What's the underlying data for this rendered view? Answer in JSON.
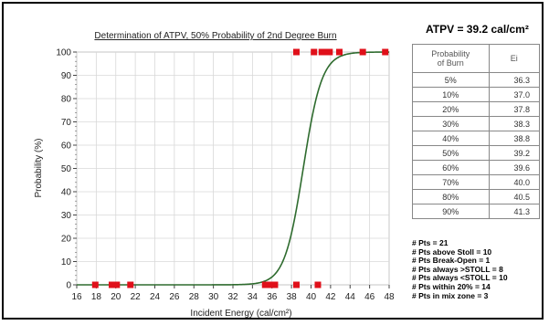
{
  "chart_data": {
    "type": "scatter",
    "title": "Determination of ATPV, 50% Probability of 2nd Degree Burn",
    "xlabel": "Incident Energy (cal/cm²)",
    "ylabel": "Probability (%)",
    "xlim": [
      16,
      48
    ],
    "ylim": [
      0,
      100
    ],
    "x_ticks": [
      "16",
      "18",
      "20",
      "22",
      "24",
      "26",
      "28",
      "30",
      "32",
      "34",
      "36",
      "38",
      "40",
      "42",
      "44",
      "46",
      "48"
    ],
    "y_ticks": [
      "0",
      "10",
      "20",
      "30",
      "40",
      "50",
      "60",
      "70",
      "80",
      "90",
      "100"
    ],
    "grid": true,
    "series": [
      {
        "type": "scatter",
        "color": "#e0101a",
        "points": [
          {
            "x": 17.9,
            "y": 0
          },
          {
            "x": 19.6,
            "y": 0
          },
          {
            "x": 20.1,
            "y": 0
          },
          {
            "x": 21.5,
            "y": 0
          },
          {
            "x": 35.3,
            "y": 0
          },
          {
            "x": 35.9,
            "y": 0
          },
          {
            "x": 36.3,
            "y": 0
          },
          {
            "x": 38.5,
            "y": 0
          },
          {
            "x": 40.7,
            "y": 0
          },
          {
            "x": 38.5,
            "y": 100
          },
          {
            "x": 40.3,
            "y": 100
          },
          {
            "x": 41.1,
            "y": 100
          },
          {
            "x": 41.6,
            "y": 100
          },
          {
            "x": 41.9,
            "y": 100
          },
          {
            "x": 42.9,
            "y": 100
          },
          {
            "x": 45.3,
            "y": 100
          },
          {
            "x": 47.6,
            "y": 100
          }
        ]
      },
      {
        "type": "line",
        "color": "#2e6b2e",
        "curve": "logistic",
        "x50": 39.2,
        "x90": 41.3
      }
    ]
  },
  "atpv_title": "ATPV = 39.2 cal/cm²",
  "table": {
    "headers": [
      "Probability\nof Burn",
      "Ei"
    ],
    "rows": [
      [
        "5%",
        "36.3"
      ],
      [
        "10%",
        "37.0"
      ],
      [
        "20%",
        "37.8"
      ],
      [
        "30%",
        "38.3"
      ],
      [
        "40%",
        "38.8"
      ],
      [
        "50%",
        "39.2"
      ],
      [
        "60%",
        "39.6"
      ],
      [
        "70%",
        "40.0"
      ],
      [
        "80%",
        "40.5"
      ],
      [
        "90%",
        "41.3"
      ]
    ]
  },
  "stats": [
    "# Pts =  21",
    "# Pts above Stoll =  10",
    "# Pts Break-Open =  1",
    "# Pts always >STOLL =  8",
    "# Pts always <STOLL =  10",
    "# Pts within 20% =  14",
    "# Pts in mix zone =  3"
  ]
}
